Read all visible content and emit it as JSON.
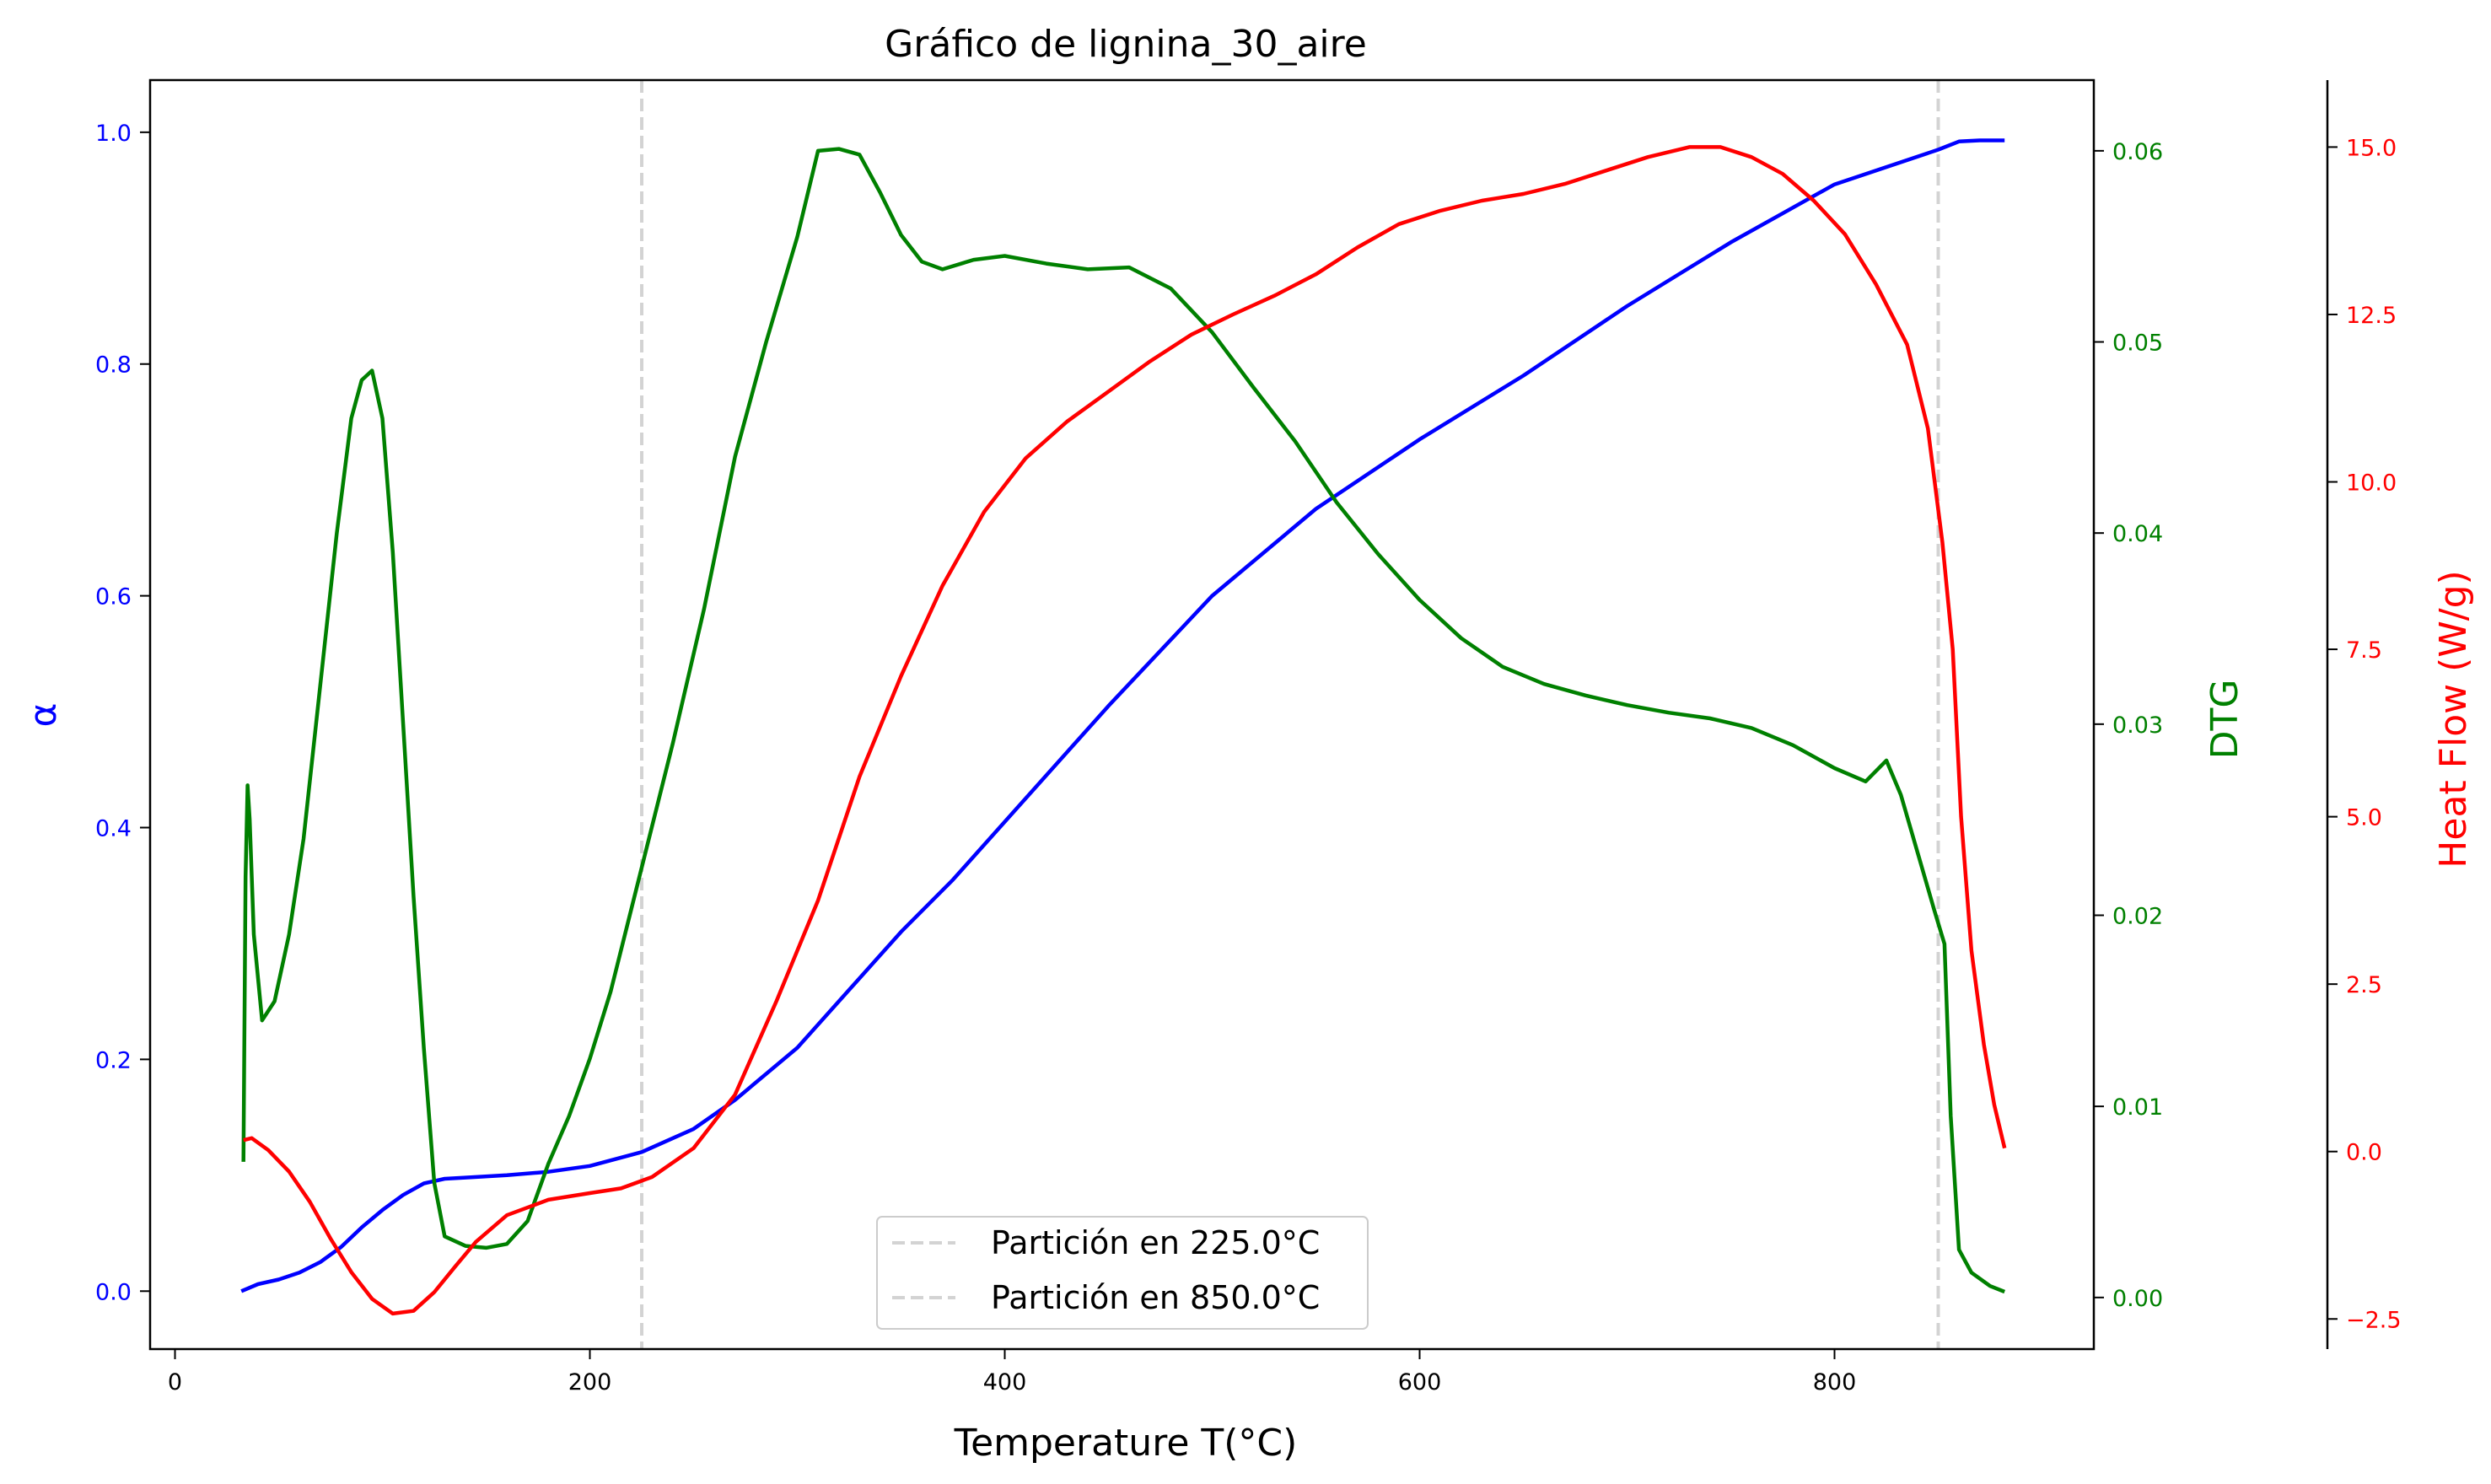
{
  "chart_data": {
    "type": "line",
    "title": "Gráfico de lignina_30_aire",
    "xlabel": "Temperature T(°C)",
    "xlim": [
      -12,
      925
    ],
    "x_ticks": [
      {
        "value": 0,
        "label": "0"
      },
      {
        "value": 200,
        "label": "200"
      },
      {
        "value": 400,
        "label": "400"
      },
      {
        "value": 600,
        "label": "600"
      },
      {
        "value": 800,
        "label": "800"
      }
    ],
    "grid": false,
    "legend_position": "lower center",
    "axes": {
      "alpha": {
        "label": "α",
        "color": "#0000ff",
        "side": "left",
        "ylim": [
          -0.05,
          1.045
        ],
        "ticks": [
          {
            "value": 0.0,
            "label": "0.0"
          },
          {
            "value": 0.2,
            "label": "0.2"
          },
          {
            "value": 0.4,
            "label": "0.4"
          },
          {
            "value": 0.6,
            "label": "0.6"
          },
          {
            "value": 0.8,
            "label": "0.8"
          },
          {
            "value": 1.0,
            "label": "1.0"
          }
        ]
      },
      "dtg": {
        "label": "DTG",
        "color": "#008000",
        "side": "right",
        "ylim": [
          -0.0027,
          0.0637
        ],
        "ticks": [
          {
            "value": 0.0,
            "label": "0.00"
          },
          {
            "value": 0.01,
            "label": "0.01"
          },
          {
            "value": 0.02,
            "label": "0.02"
          },
          {
            "value": 0.03,
            "label": "0.03"
          },
          {
            "value": 0.04,
            "label": "0.04"
          },
          {
            "value": 0.05,
            "label": "0.05"
          },
          {
            "value": 0.06,
            "label": "0.06"
          }
        ]
      },
      "heat": {
        "label": "Heat Flow (W/g)",
        "color": "#ff0000",
        "side": "right-offset",
        "ylim": [
          -2.95,
          16.0
        ],
        "ticks": [
          {
            "value": -2.5,
            "label": "−2.5"
          },
          {
            "value": 0.0,
            "label": "0.0"
          },
          {
            "value": 2.5,
            "label": "2.5"
          },
          {
            "value": 5.0,
            "label": "5.0"
          },
          {
            "value": 7.5,
            "label": "7.5"
          },
          {
            "value": 10.0,
            "label": "10.0"
          },
          {
            "value": 12.5,
            "label": "12.5"
          },
          {
            "value": 15.0,
            "label": "15.0"
          }
        ]
      }
    },
    "partitions": [
      {
        "x": 225.0,
        "label": "Partición en 225.0°C"
      },
      {
        "x": 850.0,
        "label": "Partición en 850.0°C"
      }
    ],
    "series": [
      {
        "axis": "alpha",
        "color": "#0000ff",
        "points": [
          [
            32,
            0
          ],
          [
            40,
            0.006
          ],
          [
            50,
            0.01
          ],
          [
            60,
            0.016
          ],
          [
            70,
            0.025
          ],
          [
            80,
            0.038
          ],
          [
            90,
            0.055
          ],
          [
            100,
            0.07
          ],
          [
            110,
            0.083
          ],
          [
            120,
            0.093
          ],
          [
            130,
            0.097
          ],
          [
            140,
            0.098
          ],
          [
            160,
            0.1
          ],
          [
            180,
            0.103
          ],
          [
            200,
            0.108
          ],
          [
            225,
            0.12
          ],
          [
            250,
            0.14
          ],
          [
            270,
            0.165
          ],
          [
            300,
            0.21
          ],
          [
            325,
            0.26
          ],
          [
            350,
            0.31
          ],
          [
            375,
            0.355
          ],
          [
            400,
            0.405
          ],
          [
            450,
            0.505
          ],
          [
            500,
            0.6
          ],
          [
            550,
            0.675
          ],
          [
            600,
            0.735
          ],
          [
            650,
            0.79
          ],
          [
            700,
            0.85
          ],
          [
            750,
            0.905
          ],
          [
            800,
            0.955
          ],
          [
            850,
            0.985
          ],
          [
            860,
            0.992
          ],
          [
            870,
            0.993
          ],
          [
            882,
            0.993
          ]
        ]
      },
      {
        "axis": "dtg",
        "color": "#008000",
        "points": [
          [
            33,
            0.0071
          ],
          [
            34,
            0.022
          ],
          [
            35,
            0.0268
          ],
          [
            36,
            0.025
          ],
          [
            38,
            0.019
          ],
          [
            42,
            0.0145
          ],
          [
            48,
            0.0155
          ],
          [
            55,
            0.019
          ],
          [
            62,
            0.024
          ],
          [
            70,
            0.032
          ],
          [
            78,
            0.04
          ],
          [
            85,
            0.046
          ],
          [
            90,
            0.048
          ],
          [
            95,
            0.0485
          ],
          [
            100,
            0.046
          ],
          [
            105,
            0.039
          ],
          [
            110,
            0.03
          ],
          [
            115,
            0.021
          ],
          [
            120,
            0.013
          ],
          [
            125,
            0.006
          ],
          [
            130,
            0.0032
          ],
          [
            140,
            0.0027
          ],
          [
            150,
            0.0026
          ],
          [
            160,
            0.0028
          ],
          [
            170,
            0.004
          ],
          [
            180,
            0.007
          ],
          [
            190,
            0.0095
          ],
          [
            200,
            0.0125
          ],
          [
            210,
            0.016
          ],
          [
            225,
            0.0225
          ],
          [
            240,
            0.029
          ],
          [
            255,
            0.036
          ],
          [
            270,
            0.044
          ],
          [
            285,
            0.05
          ],
          [
            300,
            0.0555
          ],
          [
            310,
            0.06
          ],
          [
            320,
            0.0601
          ],
          [
            330,
            0.0598
          ],
          [
            340,
            0.0578
          ],
          [
            350,
            0.0556
          ],
          [
            360,
            0.0542
          ],
          [
            370,
            0.0538
          ],
          [
            385,
            0.0543
          ],
          [
            400,
            0.0545
          ],
          [
            420,
            0.0541
          ],
          [
            440,
            0.0538
          ],
          [
            460,
            0.0539
          ],
          [
            480,
            0.0528
          ],
          [
            500,
            0.0505
          ],
          [
            520,
            0.0476
          ],
          [
            540,
            0.0448
          ],
          [
            560,
            0.0416
          ],
          [
            580,
            0.0389
          ],
          [
            600,
            0.0365
          ],
          [
            620,
            0.0345
          ],
          [
            640,
            0.033
          ],
          [
            660,
            0.0321
          ],
          [
            680,
            0.0315
          ],
          [
            700,
            0.031
          ],
          [
            720,
            0.0306
          ],
          [
            740,
            0.0303
          ],
          [
            760,
            0.0298
          ],
          [
            780,
            0.0289
          ],
          [
            800,
            0.0277
          ],
          [
            815,
            0.027
          ],
          [
            825,
            0.0281
          ],
          [
            832,
            0.0263
          ],
          [
            840,
            0.0233
          ],
          [
            848,
            0.0203
          ],
          [
            853,
            0.0185
          ],
          [
            856,
            0.0095
          ],
          [
            860,
            0.0025
          ],
          [
            866,
            0.0013
          ],
          [
            875,
            0.0006
          ],
          [
            882,
            0.0003
          ]
        ]
      },
      {
        "axis": "heat",
        "color": "#ff0000",
        "points": [
          [
            33,
            0.17
          ],
          [
            37,
            0.2
          ],
          [
            45,
            0.02
          ],
          [
            55,
            -0.3
          ],
          [
            65,
            -0.75
          ],
          [
            75,
            -1.3
          ],
          [
            85,
            -1.8
          ],
          [
            95,
            -2.2
          ],
          [
            105,
            -2.42
          ],
          [
            115,
            -2.38
          ],
          [
            125,
            -2.1
          ],
          [
            135,
            -1.72
          ],
          [
            145,
            -1.35
          ],
          [
            160,
            -0.95
          ],
          [
            180,
            -0.72
          ],
          [
            200,
            -0.62
          ],
          [
            215,
            -0.55
          ],
          [
            230,
            -0.38
          ],
          [
            250,
            0.05
          ],
          [
            270,
            0.85
          ],
          [
            290,
            2.25
          ],
          [
            310,
            3.75
          ],
          [
            330,
            5.6
          ],
          [
            350,
            7.1
          ],
          [
            370,
            8.45
          ],
          [
            390,
            9.55
          ],
          [
            410,
            10.35
          ],
          [
            430,
            10.9
          ],
          [
            450,
            11.35
          ],
          [
            470,
            11.8
          ],
          [
            490,
            12.2
          ],
          [
            510,
            12.5
          ],
          [
            530,
            12.78
          ],
          [
            550,
            13.1
          ],
          [
            570,
            13.5
          ],
          [
            590,
            13.85
          ],
          [
            610,
            14.05
          ],
          [
            630,
            14.2
          ],
          [
            650,
            14.3
          ],
          [
            670,
            14.45
          ],
          [
            690,
            14.65
          ],
          [
            710,
            14.85
          ],
          [
            730,
            15.0
          ],
          [
            745,
            15.0
          ],
          [
            760,
            14.85
          ],
          [
            775,
            14.6
          ],
          [
            790,
            14.2
          ],
          [
            805,
            13.7
          ],
          [
            820,
            12.95
          ],
          [
            835,
            12.05
          ],
          [
            845,
            10.8
          ],
          [
            852,
            9.1
          ],
          [
            857,
            7.5
          ],
          [
            861,
            5.0
          ],
          [
            866,
            3.0
          ],
          [
            872,
            1.6
          ],
          [
            877,
            0.7
          ],
          [
            882,
            0.05
          ]
        ]
      }
    ]
  }
}
